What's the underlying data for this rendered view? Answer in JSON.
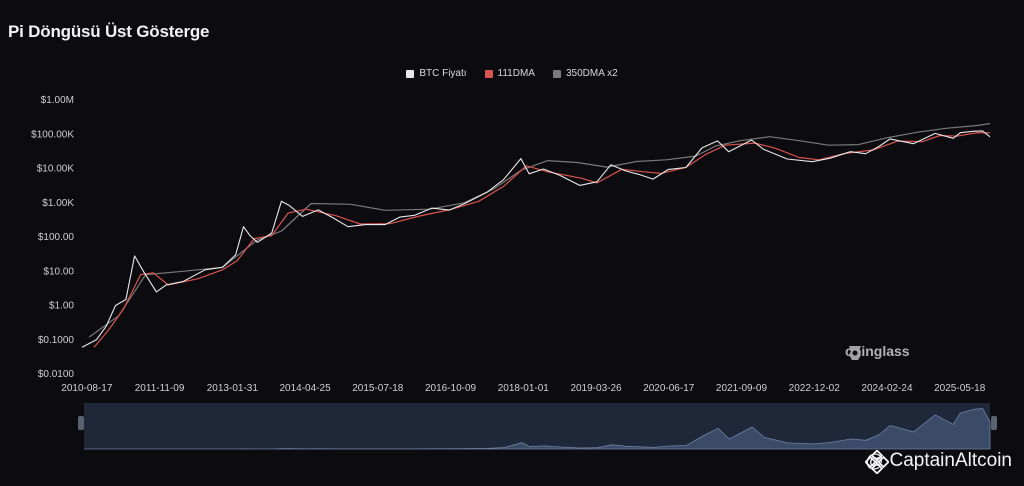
{
  "title": "Pi Döngüsü Üst Gösterge",
  "legend": [
    {
      "label": "BTC Fiyatı",
      "color": "#e8e8e8"
    },
    {
      "label": "111DMA",
      "color": "#d9534f"
    },
    {
      "label": "350DMA x2",
      "color": "#7a7a7a"
    }
  ],
  "watermark": "coinglass",
  "credit": {
    "prefix": "@",
    "name": "CaptainAltcoin"
  },
  "chart_data": {
    "type": "line",
    "title": "Pi Döngüsü Üst Gösterge",
    "y_scale": "log",
    "ylim": [
      0.01,
      1000000
    ],
    "y_ticks": [
      "$0.0100",
      "$0.1000",
      "$1.00",
      "$10.00",
      "$100.00",
      "$1.00K",
      "$10.00K",
      "$100.00K",
      "$1.00M"
    ],
    "x_ticks": [
      "2010-08-17",
      "2011-11-09",
      "2013-01-31",
      "2014-04-25",
      "2015-07-18",
      "2016-10-09",
      "2018-01-01",
      "2019-03-26",
      "2020-06-17",
      "2021-09-09",
      "2022-12-02",
      "2024-02-24",
      "2025-05-18"
    ],
    "legend_position": "top-center",
    "grid": false,
    "series": [
      {
        "name": "BTC Fiyatı",
        "color": "#e8e8e8",
        "points": [
          [
            "2010-07-18",
            0.06
          ],
          [
            "2010-10-15",
            0.1
          ],
          [
            "2010-12-15",
            0.25
          ],
          [
            "2011-02-10",
            1.0
          ],
          [
            "2011-04-15",
            1.5
          ],
          [
            "2011-06-08",
            28
          ],
          [
            "2011-08-01",
            10
          ],
          [
            "2011-10-20",
            2.5
          ],
          [
            "2011-12-20",
            4
          ],
          [
            "2012-04-01",
            5
          ],
          [
            "2012-08-15",
            11
          ],
          [
            "2012-12-01",
            13
          ],
          [
            "2013-02-20",
            30
          ],
          [
            "2013-04-10",
            200
          ],
          [
            "2013-05-20",
            110
          ],
          [
            "2013-07-05",
            70
          ],
          [
            "2013-10-01",
            130
          ],
          [
            "2013-11-30",
            1100
          ],
          [
            "2014-01-15",
            850
          ],
          [
            "2014-04-10",
            400
          ],
          [
            "2014-07-15",
            620
          ],
          [
            "2014-10-15",
            360
          ],
          [
            "2015-01-15",
            200
          ],
          [
            "2015-05-01",
            230
          ],
          [
            "2015-09-01",
            230
          ],
          [
            "2015-12-01",
            380
          ],
          [
            "2016-03-01",
            430
          ],
          [
            "2016-06-15",
            700
          ],
          [
            "2016-10-01",
            610
          ],
          [
            "2017-01-05",
            950
          ],
          [
            "2017-05-20",
            2000
          ],
          [
            "2017-09-01",
            4700
          ],
          [
            "2017-12-17",
            19500
          ],
          [
            "2018-02-06",
            7000
          ],
          [
            "2018-05-05",
            9700
          ],
          [
            "2018-08-15",
            6300
          ],
          [
            "2018-12-15",
            3200
          ],
          [
            "2019-04-01",
            4100
          ],
          [
            "2019-06-26",
            12900
          ],
          [
            "2019-09-24",
            8500
          ],
          [
            "2019-12-18",
            6700
          ],
          [
            "2020-03-12",
            4900
          ],
          [
            "2020-06-15",
            9400
          ],
          [
            "2020-10-01",
            10700
          ],
          [
            "2021-01-08",
            40000
          ],
          [
            "2021-04-14",
            64000
          ],
          [
            "2021-06-22",
            31000
          ],
          [
            "2021-11-10",
            68000
          ],
          [
            "2022-01-24",
            36000
          ],
          [
            "2022-06-18",
            19000
          ],
          [
            "2022-11-21",
            15800
          ],
          [
            "2023-03-10",
            20000
          ],
          [
            "2023-07-13",
            31000
          ],
          [
            "2023-10-15",
            27000
          ],
          [
            "2024-01-05",
            44000
          ],
          [
            "2024-03-14",
            73000
          ],
          [
            "2024-08-05",
            53000
          ],
          [
            "2024-12-17",
            106000
          ],
          [
            "2025-04-08",
            76000
          ],
          [
            "2025-05-22",
            111000
          ],
          [
            "2025-08-14",
            123000
          ],
          [
            "2025-10-06",
            125000
          ],
          [
            "2025-11-21",
            84000
          ]
        ]
      },
      {
        "name": "111DMA",
        "color": "#d9534f",
        "points": [
          [
            "2010-10-01",
            0.06
          ],
          [
            "2011-01-01",
            0.2
          ],
          [
            "2011-04-01",
            0.8
          ],
          [
            "2011-07-15",
            8
          ],
          [
            "2011-10-01",
            9
          ],
          [
            "2012-01-01",
            4
          ],
          [
            "2012-07-01",
            6
          ],
          [
            "2012-12-01",
            11
          ],
          [
            "2013-03-01",
            20
          ],
          [
            "2013-06-15",
            90
          ],
          [
            "2013-10-01",
            110
          ],
          [
            "2014-01-10",
            500
          ],
          [
            "2014-05-01",
            650
          ],
          [
            "2014-11-01",
            420
          ],
          [
            "2015-04-01",
            240
          ],
          [
            "2015-10-01",
            245
          ],
          [
            "2016-04-01",
            410
          ],
          [
            "2016-10-01",
            620
          ],
          [
            "2017-04-01",
            1100
          ],
          [
            "2017-09-01",
            3000
          ],
          [
            "2018-01-20",
            12000
          ],
          [
            "2018-06-01",
            8000
          ],
          [
            "2018-12-25",
            5200
          ],
          [
            "2019-04-01",
            3800
          ],
          [
            "2019-09-01",
            9500
          ],
          [
            "2020-01-15",
            8000
          ],
          [
            "2020-05-01",
            7200
          ],
          [
            "2020-10-01",
            10800
          ],
          [
            "2021-02-01",
            26000
          ],
          [
            "2021-06-01",
            48000
          ],
          [
            "2021-12-01",
            55000
          ],
          [
            "2022-04-01",
            40000
          ],
          [
            "2022-09-01",
            21000
          ],
          [
            "2023-01-01",
            18000
          ],
          [
            "2023-06-01",
            27000
          ],
          [
            "2023-12-01",
            35000
          ],
          [
            "2024-05-01",
            63000
          ],
          [
            "2024-10-01",
            61000
          ],
          [
            "2025-01-15",
            92000
          ],
          [
            "2025-05-01",
            88000
          ],
          [
            "2025-09-01",
            112000
          ],
          [
            "2025-11-21",
            110000
          ]
        ]
      },
      {
        "name": "350DMA x2",
        "color": "#7a7a7a",
        "points": [
          [
            "2010-09-01",
            0.12
          ],
          [
            "2011-03-01",
            0.5
          ],
          [
            "2011-08-15",
            8
          ],
          [
            "2012-04-01",
            10
          ],
          [
            "2012-12-01",
            13
          ],
          [
            "2013-07-01",
            80
          ],
          [
            "2013-12-01",
            150
          ],
          [
            "2014-06-01",
            950
          ],
          [
            "2015-02-01",
            900
          ],
          [
            "2015-09-01",
            600
          ],
          [
            "2016-06-01",
            650
          ],
          [
            "2017-01-01",
            1000
          ],
          [
            "2017-07-01",
            2500
          ],
          [
            "2017-12-20",
            9000
          ],
          [
            "2018-06-01",
            17000
          ],
          [
            "2018-12-01",
            15000
          ],
          [
            "2019-06-01",
            11000
          ],
          [
            "2019-12-01",
            16000
          ],
          [
            "2020-06-01",
            18000
          ],
          [
            "2020-12-01",
            23000
          ],
          [
            "2021-04-01",
            45000
          ],
          [
            "2021-09-01",
            65000
          ],
          [
            "2022-03-01",
            85000
          ],
          [
            "2022-09-01",
            65000
          ],
          [
            "2023-03-01",
            48000
          ],
          [
            "2023-09-01",
            50000
          ],
          [
            "2024-03-01",
            80000
          ],
          [
            "2024-09-01",
            115000
          ],
          [
            "2025-03-01",
            150000
          ],
          [
            "2025-09-01",
            180000
          ],
          [
            "2025-11-21",
            205000
          ]
        ]
      }
    ]
  }
}
